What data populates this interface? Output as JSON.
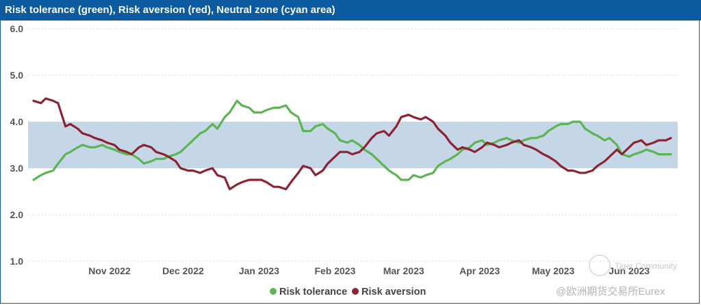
{
  "colors": {
    "title_bg": "#0c5aa0",
    "band": "#c5d6e6",
    "green": "#5ab552",
    "red": "#8c2232",
    "grid": "#d9d9d9"
  },
  "chart_data": {
    "type": "line",
    "title": "Risk tolerance (green), Risk aversion (red), Neutral zone (cyan area)",
    "xlabel": "",
    "ylabel": "",
    "ylim": [
      1.0,
      6.0
    ],
    "yticks": [
      "6.0",
      "5.0",
      "4.0",
      "3.0",
      "2.0",
      "1.0"
    ],
    "xdomain_days": [
      0,
      260
    ],
    "xticks": [
      {
        "label": "Nov 2022",
        "day": 31
      },
      {
        "label": "Dec 2022",
        "day": 61
      },
      {
        "label": "Jan 2023",
        "day": 92
      },
      {
        "label": "Feb 2023",
        "day": 123
      },
      {
        "label": "Mar 2023",
        "day": 151
      },
      {
        "label": "Apr 2023",
        "day": 182
      },
      {
        "label": "May 2023",
        "day": 212
      },
      {
        "label": "Jun 2023",
        "day": 243
      }
    ],
    "neutral_zone": {
      "name": "Neutral zone",
      "lower": 3.0,
      "upper": 4.0
    },
    "series": [
      {
        "name": "Risk tolerance",
        "color": "#5ab552",
        "x": [
          0,
          3,
          5,
          8,
          10,
          13,
          15,
          18,
          20,
          23,
          25,
          28,
          30,
          33,
          35,
          38,
          40,
          43,
          45,
          48,
          50,
          53,
          55,
          58,
          60,
          63,
          65,
          68,
          70,
          73,
          75,
          78,
          80,
          83,
          85,
          88,
          90,
          93,
          95,
          98,
          100,
          103,
          105,
          108,
          110,
          113,
          115,
          118,
          120,
          123,
          125,
          128,
          130,
          133,
          135,
          138,
          140,
          143,
          145,
          148,
          150,
          153,
          155,
          158,
          160,
          163,
          165,
          168,
          170,
          173,
          175,
          178,
          180,
          183,
          185,
          188,
          190,
          193,
          195,
          198,
          200,
          203,
          205,
          208,
          210,
          213,
          215,
          218,
          220,
          223,
          225,
          228,
          230,
          233,
          235,
          238,
          240,
          243,
          245,
          248,
          250,
          253,
          255,
          258,
          260
        ],
        "values": [
          2.75,
          2.85,
          2.9,
          2.95,
          3.1,
          3.3,
          3.35,
          3.45,
          3.5,
          3.45,
          3.45,
          3.5,
          3.45,
          3.4,
          3.35,
          3.3,
          3.3,
          3.2,
          3.1,
          3.15,
          3.2,
          3.2,
          3.25,
          3.3,
          3.35,
          3.5,
          3.6,
          3.75,
          3.8,
          3.95,
          3.85,
          4.1,
          4.2,
          4.45,
          4.35,
          4.3,
          4.2,
          4.2,
          4.25,
          4.3,
          4.3,
          4.35,
          4.2,
          4.1,
          3.8,
          3.8,
          3.9,
          3.95,
          3.85,
          3.75,
          3.6,
          3.55,
          3.6,
          3.5,
          3.4,
          3.3,
          3.2,
          3.05,
          2.95,
          2.85,
          2.75,
          2.75,
          2.85,
          2.8,
          2.85,
          2.9,
          3.05,
          3.15,
          3.2,
          3.3,
          3.4,
          3.45,
          3.55,
          3.6,
          3.5,
          3.55,
          3.6,
          3.65,
          3.6,
          3.55,
          3.6,
          3.65,
          3.65,
          3.7,
          3.8,
          3.9,
          3.95,
          3.95,
          4.0,
          4.0,
          3.85,
          3.75,
          3.7,
          3.6,
          3.65,
          3.5,
          3.3,
          3.25,
          3.3,
          3.35,
          3.4,
          3.35,
          3.3,
          3.3,
          3.3
        ]
      },
      {
        "name": "Risk aversion",
        "color": "#8c2232",
        "x": [
          0,
          3,
          5,
          8,
          10,
          13,
          15,
          18,
          20,
          23,
          25,
          28,
          30,
          33,
          35,
          38,
          40,
          43,
          45,
          48,
          50,
          53,
          55,
          58,
          60,
          63,
          65,
          68,
          70,
          73,
          75,
          78,
          80,
          83,
          85,
          88,
          90,
          93,
          95,
          98,
          100,
          103,
          105,
          108,
          110,
          113,
          115,
          118,
          120,
          123,
          125,
          128,
          130,
          133,
          135,
          138,
          140,
          143,
          145,
          148,
          150,
          153,
          155,
          158,
          160,
          163,
          165,
          168,
          170,
          173,
          175,
          178,
          180,
          183,
          185,
          188,
          190,
          193,
          195,
          198,
          200,
          203,
          205,
          208,
          210,
          213,
          215,
          218,
          220,
          223,
          225,
          228,
          230,
          233,
          235,
          238,
          240,
          243,
          245,
          248,
          250,
          253,
          255,
          258,
          260
        ],
        "values": [
          4.45,
          4.4,
          4.5,
          4.45,
          4.4,
          3.9,
          3.95,
          3.85,
          3.75,
          3.7,
          3.65,
          3.6,
          3.55,
          3.5,
          3.4,
          3.35,
          3.3,
          3.45,
          3.5,
          3.45,
          3.35,
          3.3,
          3.25,
          3.15,
          3.0,
          2.95,
          2.95,
          2.9,
          2.95,
          3.0,
          2.85,
          2.8,
          2.55,
          2.65,
          2.7,
          2.75,
          2.75,
          2.75,
          2.7,
          2.6,
          2.6,
          2.55,
          2.7,
          2.9,
          3.05,
          3.0,
          2.85,
          2.95,
          3.1,
          3.25,
          3.35,
          3.35,
          3.3,
          3.35,
          3.45,
          3.65,
          3.75,
          3.8,
          3.7,
          3.9,
          4.1,
          4.15,
          4.1,
          4.05,
          4.1,
          4.0,
          3.85,
          3.7,
          3.55,
          3.4,
          3.45,
          3.4,
          3.35,
          3.45,
          3.55,
          3.5,
          3.45,
          3.5,
          3.55,
          3.6,
          3.5,
          3.45,
          3.4,
          3.3,
          3.25,
          3.15,
          3.05,
          2.95,
          2.95,
          2.9,
          2.9,
          2.95,
          3.05,
          3.15,
          3.25,
          3.4,
          3.3,
          3.45,
          3.55,
          3.6,
          3.5,
          3.55,
          3.6,
          3.6,
          3.65
        ]
      }
    ],
    "legend": {
      "position": "bottom-center",
      "entries": [
        "Risk tolerance",
        "Risk aversion"
      ]
    }
  },
  "watermark": {
    "line1": "Tiger Community",
    "line2": "@欧洲期货交易所Eurex"
  }
}
